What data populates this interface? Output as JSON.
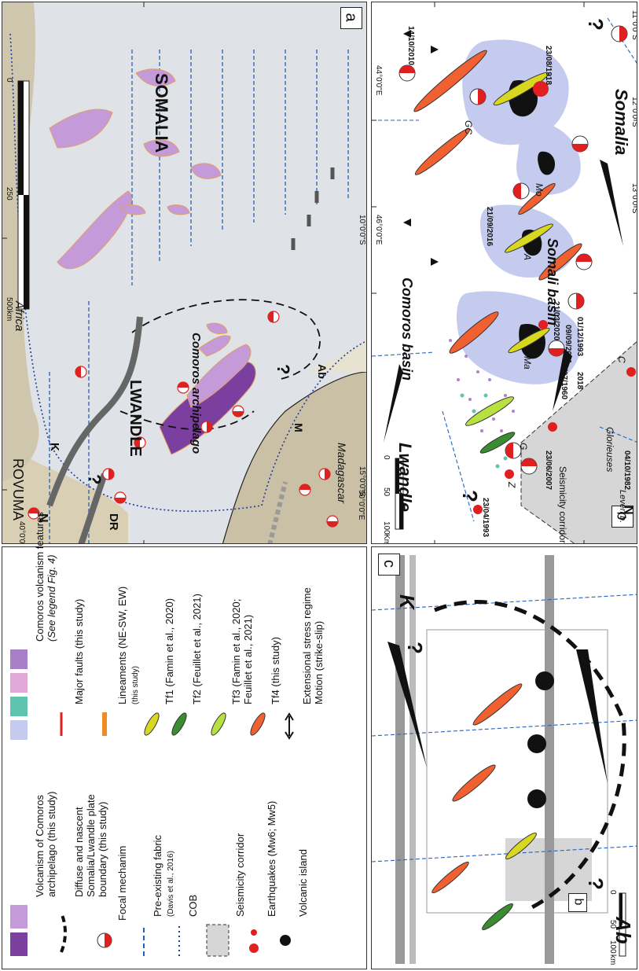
{
  "panel_a": {
    "label": "a",
    "place_names": {
      "somalia": "SOMALIA",
      "lwandle": "LWANDLE",
      "comoros": "Comoros archipelago",
      "rovuma": "ROVUMA",
      "africa": "Africa",
      "madagascar": "Madagascar",
      "k": "K",
      "dr": "DR",
      "m": "M",
      "ab": "Ab",
      "question": "?"
    },
    "scale": {
      "ticks": [
        "0",
        "250",
        "500"
      ],
      "unit": "km"
    },
    "lat_ticks": [
      "10°0'0\"S",
      "15°0'0\"S"
    ],
    "lon_ticks": [
      "40°0'0\"E",
      "50°0'0\"E"
    ],
    "north": "N"
  },
  "panel_b": {
    "label": "b",
    "place_names": {
      "somalia": "Somalia",
      "somali_basin": "Somali basin",
      "comoros_basin": "Comoros basin",
      "lwandle": "Lwandle",
      "glorieuses": "Glorieuses",
      "leven": "Leven b.",
      "corridor": "Seismicity corridor",
      "gc": "GC",
      "mo": "Mo",
      "a": "A",
      "ma": "Ma",
      "g": "G",
      "z": "Z",
      "c": "C",
      "question": "?"
    },
    "dates": {
      "d1": "14/10/2010",
      "d2": "23/08/1918",
      "d3": "21/09/2016",
      "d4": "21/03/2020",
      "d5": "09/09/2011",
      "d6": "01/12/1993",
      "d7": "15/07/1960",
      "d8": "2018",
      "d9": "23/04/1993",
      "d10": "23/06/2007",
      "d11": "04/10/1982"
    },
    "scale": {
      "ticks": [
        "0",
        "50",
        "100"
      ],
      "unit": "Km"
    },
    "lat_ticks": [
      "11°0'0\"S",
      "12°0'0\"S",
      "13°0'0\"S"
    ],
    "lon_ticks": [
      "44°0'0\"E",
      "46°0'0\"E"
    ],
    "north": "N"
  },
  "panel_c": {
    "label": "c",
    "inset_label": "b",
    "place_names": {
      "k": "K",
      "ab": "Ab",
      "question": "?"
    },
    "scale": {
      "ticks": [
        "0",
        "50",
        "100"
      ],
      "unit": "km"
    }
  },
  "legend": {
    "left": [
      {
        "text": "Volcanism of Comoros",
        "text2": "archipelago (this study)"
      },
      {
        "text": "Diffuse and nascent",
        "text2": "Somalia/Lwandle plate",
        "text3": "boundary (this study)"
      },
      {
        "text": "Focal mechanim"
      },
      {
        "text": "Pre-existing fabric",
        "text2": "(Davis et al., 2016)"
      },
      {
        "text": "COB"
      },
      {
        "text": "Seismicity corridor"
      },
      {
        "text": "Earthquakes (Mw6; Mw5)"
      },
      {
        "text": "Volcanic island"
      }
    ],
    "right": [
      {
        "text": "Comoros volcanism features",
        "text2": "(See legend Fig. 4)"
      },
      {
        "text": "Major faults (this study)"
      },
      {
        "text": "Lineaments (NE-SW, EW)",
        "text2": "(this study)"
      },
      {
        "text": "Tf1 (Famin et al., 2020)"
      },
      {
        "text": "Tf2 (Feuillet et al., 2021)"
      },
      {
        "text": "Tf3 (Famin et al., 2020;",
        "text2": "Feuillet et al., 2021)"
      },
      {
        "text": "Tf4 (this study)"
      },
      {
        "text": "Extensional stress regime",
        "text2": "Motion (strike-slip)"
      }
    ]
  },
  "colors": {
    "volcanism_dark": "#7b3fa0",
    "volcanism_light": "#c49ad8",
    "comoros_blue": "#c5cbee",
    "comoros_teal": "#5fc3b0",
    "comoros_pink": "#e2a8d8",
    "comoros_violet": "#a77fc9",
    "fault_red": "#e02020",
    "lineament_orange": "#f08a24",
    "tf1": "#d8d820",
    "tf2": "#3a8c30",
    "tf3": "#b8e040",
    "tf4": "#f06030",
    "fabric_blue": "#1e62c8",
    "corridor_grey": "#d6d6d6"
  }
}
